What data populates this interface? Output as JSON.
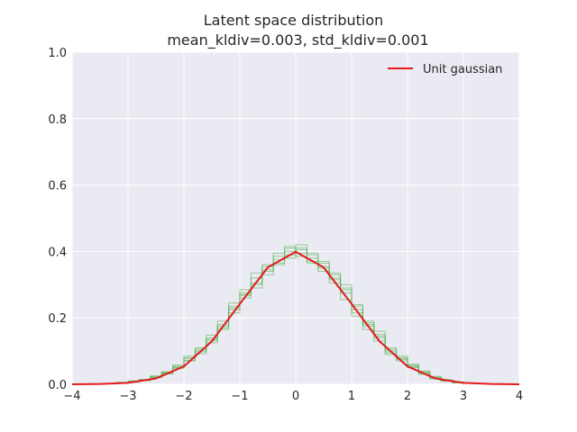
{
  "chart_data": {
    "type": "line",
    "title": "Latent space distribution",
    "subtitle": "mean_kldiv=0.003, std_kldiv=0.001",
    "xlabel": "",
    "ylabel": "",
    "xlim": [
      -4,
      4
    ],
    "ylim": [
      0,
      1.0
    ],
    "x_ticks": [
      "−4",
      "−3",
      "−2",
      "−1",
      "0",
      "1",
      "2",
      "3",
      "4"
    ],
    "y_ticks": [
      "0.0",
      "0.2",
      "0.4",
      "0.6",
      "0.8",
      "1.0"
    ],
    "grid": true,
    "legend_position": "top-right",
    "series": [
      {
        "name": "Unit gaussian",
        "color": "#e31a1c",
        "x": [
          -4.0,
          -3.5,
          -3.0,
          -2.5,
          -2.0,
          -1.5,
          -1.0,
          -0.5,
          0.0,
          0.5,
          1.0,
          1.5,
          2.0,
          2.5,
          3.0,
          3.5,
          4.0
        ],
        "values": [
          0.0001,
          0.0009,
          0.0044,
          0.0175,
          0.054,
          0.1295,
          0.242,
          0.352,
          0.399,
          0.352,
          0.242,
          0.1295,
          0.054,
          0.0175,
          0.0044,
          0.0009,
          0.0001
        ]
      }
    ],
    "histograms": {
      "color": "#4daf4a",
      "bin_edges": [
        -3.2,
        -3.0,
        -2.8,
        -2.6,
        -2.4,
        -2.2,
        -2.0,
        -1.8,
        -1.6,
        -1.4,
        -1.2,
        -1.0,
        -0.8,
        -0.6,
        -0.4,
        -0.2,
        0.0,
        0.2,
        0.4,
        0.6,
        0.8,
        1.0,
        1.2,
        1.4,
        1.6,
        1.8,
        2.0,
        2.2,
        2.4,
        2.6,
        2.8,
        3.0
      ],
      "series": [
        [
          0.004,
          0.007,
          0.012,
          0.022,
          0.033,
          0.05,
          0.072,
          0.106,
          0.14,
          0.18,
          0.23,
          0.275,
          0.32,
          0.355,
          0.385,
          0.41,
          0.395,
          0.38,
          0.355,
          0.33,
          0.29,
          0.24,
          0.19,
          0.15,
          0.11,
          0.08,
          0.055,
          0.035,
          0.02,
          0.012,
          0.006
        ],
        [
          0.006,
          0.009,
          0.015,
          0.025,
          0.036,
          0.058,
          0.085,
          0.098,
          0.125,
          0.17,
          0.215,
          0.26,
          0.3,
          0.34,
          0.365,
          0.39,
          0.42,
          0.395,
          0.365,
          0.32,
          0.275,
          0.225,
          0.175,
          0.14,
          0.1,
          0.075,
          0.05,
          0.03,
          0.018,
          0.01,
          0.005
        ],
        [
          0.003,
          0.008,
          0.011,
          0.02,
          0.031,
          0.048,
          0.07,
          0.092,
          0.135,
          0.175,
          0.245,
          0.285,
          0.335,
          0.36,
          0.395,
          0.415,
          0.385,
          0.37,
          0.34,
          0.305,
          0.255,
          0.205,
          0.165,
          0.13,
          0.09,
          0.07,
          0.06,
          0.04,
          0.024,
          0.014,
          0.007
        ],
        [
          0.005,
          0.006,
          0.014,
          0.021,
          0.035,
          0.052,
          0.078,
          0.102,
          0.148,
          0.19,
          0.225,
          0.27,
          0.305,
          0.33,
          0.375,
          0.4,
          0.405,
          0.365,
          0.35,
          0.315,
          0.285,
          0.235,
          0.18,
          0.145,
          0.105,
          0.085,
          0.052,
          0.033,
          0.022,
          0.011,
          0.006
        ],
        [
          0.004,
          0.01,
          0.013,
          0.024,
          0.038,
          0.055,
          0.08,
          0.11,
          0.132,
          0.165,
          0.235,
          0.268,
          0.29,
          0.345,
          0.36,
          0.38,
          0.41,
          0.39,
          0.37,
          0.335,
          0.3,
          0.215,
          0.185,
          0.16,
          0.095,
          0.078,
          0.058,
          0.038,
          0.016,
          0.009,
          0.004
        ]
      ]
    }
  }
}
